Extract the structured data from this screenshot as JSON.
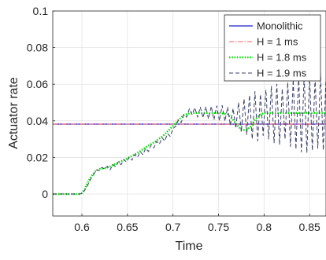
{
  "chart_data": {
    "type": "line",
    "title": "",
    "xlabel": "Time",
    "ylabel": "Actuator rate",
    "xlim": [
      0.568,
      0.868
    ],
    "ylim": [
      -0.012,
      0.1
    ],
    "xticks": [
      0.6,
      0.65,
      0.7,
      0.75,
      0.8,
      0.85
    ],
    "xtick_labels": [
      "0.6",
      "0.65",
      "0.7",
      "0.75",
      "0.8",
      "0.85"
    ],
    "yticks": [
      0,
      0.02,
      0.04,
      0.06,
      0.08,
      0.1
    ],
    "ytick_labels": [
      "0",
      "0.02",
      "0.04",
      "0.06",
      "0.08",
      "0.1"
    ],
    "grid": true,
    "legend_position": "top-right",
    "series": [
      {
        "name": "Monolithic",
        "color": "#1f1fd0",
        "style": "solid",
        "x": [
          0.568,
          0.868
        ],
        "y": [
          0.0382,
          0.0382
        ]
      },
      {
        "name": "H = 1 ms",
        "color": "#ff5a5a",
        "style": "dashdot",
        "x": [
          0.568,
          0.598,
          0.6,
          0.603,
          0.606,
          0.61,
          0.615,
          0.62,
          0.63,
          0.64,
          0.65,
          0.66,
          0.67,
          0.68,
          0.69,
          0.7,
          0.71,
          0.72,
          0.73,
          0.74,
          0.75,
          0.76,
          0.765,
          0.77,
          0.775,
          0.78,
          0.785,
          0.79,
          0.8,
          0.82,
          0.84,
          0.868
        ],
        "y": [
          0.0382,
          0.0382,
          0.0382,
          0.0382,
          0.0382,
          0.0382,
          0.0382,
          0.0382,
          0.0382,
          0.0382,
          0.0382,
          0.0382,
          0.0382,
          0.0382,
          0.0382,
          0.0382,
          0.0382,
          0.0382,
          0.0382,
          0.0382,
          0.0382,
          0.0382,
          0.0382,
          0.0382,
          0.0382,
          0.0382,
          0.0382,
          0.0382,
          0.0382,
          0.0382,
          0.0382,
          0.0382
        ]
      },
      {
        "name": "H = 1.8 ms",
        "color": "#00e000",
        "style": "dotted",
        "x": [
          0.568,
          0.597,
          0.6,
          0.603,
          0.606,
          0.61,
          0.615,
          0.62,
          0.625,
          0.63,
          0.64,
          0.65,
          0.66,
          0.67,
          0.68,
          0.69,
          0.7,
          0.706,
          0.712,
          0.72,
          0.73,
          0.74,
          0.75,
          0.76,
          0.765,
          0.77,
          0.775,
          0.78,
          0.785,
          0.79,
          0.795,
          0.8,
          0.81,
          0.82,
          0.84,
          0.868
        ],
        "y": [
          0.0,
          0.0,
          0.0005,
          0.0025,
          0.006,
          0.0095,
          0.0125,
          0.0138,
          0.0141,
          0.0148,
          0.0172,
          0.0195,
          0.0222,
          0.0255,
          0.0285,
          0.0322,
          0.0372,
          0.0405,
          0.0432,
          0.0443,
          0.0443,
          0.0443,
          0.0443,
          0.0436,
          0.0412,
          0.0378,
          0.0352,
          0.0348,
          0.0368,
          0.0405,
          0.0432,
          0.0443,
          0.0443,
          0.0443,
          0.0443,
          0.0443
        ]
      },
      {
        "name": "H = 1.9 ms",
        "color": "#3a3f68",
        "style": "dashed",
        "x": [
          0.568,
          0.597,
          0.6,
          0.603,
          0.606,
          0.61,
          0.613,
          0.616,
          0.619,
          0.622,
          0.625,
          0.628,
          0.631,
          0.634,
          0.637,
          0.64,
          0.643,
          0.646,
          0.649,
          0.652,
          0.655,
          0.658,
          0.661,
          0.664,
          0.667,
          0.67,
          0.673,
          0.676,
          0.679,
          0.682,
          0.685,
          0.688,
          0.691,
          0.694,
          0.697,
          0.7,
          0.703,
          0.706,
          0.709,
          0.712,
          0.715,
          0.718,
          0.721,
          0.724,
          0.727,
          0.73,
          0.733,
          0.736,
          0.739,
          0.742,
          0.745,
          0.748,
          0.751,
          0.754,
          0.757,
          0.76,
          0.763,
          0.766,
          0.769,
          0.772,
          0.775,
          0.778,
          0.781,
          0.784,
          0.787,
          0.79,
          0.793,
          0.796,
          0.799,
          0.802,
          0.805,
          0.808,
          0.811,
          0.814,
          0.817,
          0.82,
          0.823,
          0.826,
          0.829,
          0.832,
          0.835,
          0.838,
          0.841,
          0.844,
          0.847,
          0.85,
          0.853,
          0.856,
          0.859,
          0.862,
          0.865,
          0.868
        ],
        "y": [
          0.0,
          0.0,
          0.0003,
          0.002,
          0.0045,
          0.0085,
          0.0108,
          0.0132,
          0.0128,
          0.0146,
          0.0136,
          0.0152,
          0.0132,
          0.0162,
          0.0148,
          0.0176,
          0.016,
          0.0188,
          0.0175,
          0.0202,
          0.0185,
          0.0216,
          0.02,
          0.0232,
          0.0215,
          0.025,
          0.0232,
          0.0268,
          0.0252,
          0.0288,
          0.0272,
          0.0308,
          0.029,
          0.033,
          0.0315,
          0.0358,
          0.037,
          0.0405,
          0.039,
          0.0435,
          0.042,
          0.0466,
          0.0435,
          0.0472,
          0.042,
          0.0475,
          0.0416,
          0.0478,
          0.041,
          0.048,
          0.0405,
          0.0482,
          0.04,
          0.0484,
          0.0398,
          0.0475,
          0.0375,
          0.0468,
          0.036,
          0.05,
          0.034,
          0.052,
          0.0325,
          0.054,
          0.03,
          0.056,
          0.029,
          0.0545,
          0.032,
          0.057,
          0.03,
          0.059,
          0.028,
          0.06,
          0.027,
          0.0575,
          0.03,
          0.061,
          0.026,
          0.0625,
          0.0245,
          0.064,
          0.023,
          0.065,
          0.0225,
          0.0642,
          0.0238,
          0.0632,
          0.025,
          0.066,
          0.024,
          0.063
        ]
      }
    ]
  }
}
